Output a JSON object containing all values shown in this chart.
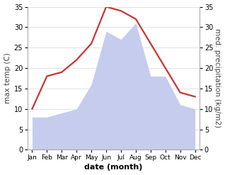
{
  "months": [
    "Jan",
    "Feb",
    "Mar",
    "Apr",
    "May",
    "Jun",
    "Jul",
    "Aug",
    "Sep",
    "Oct",
    "Nov",
    "Dec"
  ],
  "max_temp": [
    10,
    18,
    19,
    22,
    26,
    35,
    34,
    32,
    26,
    20,
    14,
    13
  ],
  "precipitation": [
    8,
    8,
    9,
    10,
    16,
    29,
    27,
    31,
    18,
    18,
    11,
    10
  ],
  "temp_color": "#cc3333",
  "precip_color": "#c5ccee",
  "left_ylabel": "max temp (C)",
  "right_ylabel": "med. precipitation (kg/m2)",
  "xlabel": "date (month)",
  "ylim_left": [
    0,
    35
  ],
  "ylim_right": [
    0,
    35
  ],
  "yticks_left": [
    0,
    5,
    10,
    15,
    20,
    25,
    30,
    35
  ],
  "yticks_right": [
    0,
    5,
    10,
    15,
    20,
    25,
    30,
    35
  ],
  "background_color": "#ffffff",
  "grid_color": "#dddddd",
  "left_label_color": "#444444",
  "right_label_color": "#444444"
}
